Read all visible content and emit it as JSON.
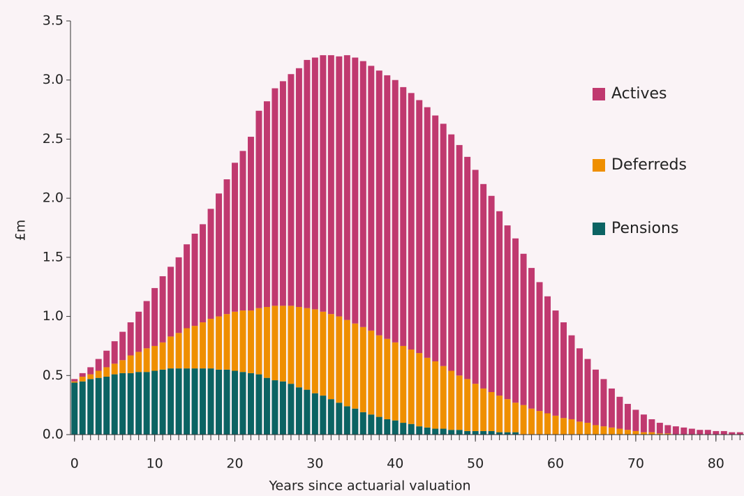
{
  "chart_data": {
    "type": "stacked-bar",
    "x": [
      0,
      1,
      2,
      3,
      4,
      5,
      6,
      7,
      8,
      9,
      10,
      11,
      12,
      13,
      14,
      15,
      16,
      17,
      18,
      19,
      20,
      21,
      22,
      23,
      24,
      25,
      26,
      27,
      28,
      29,
      30,
      31,
      32,
      33,
      34,
      35,
      36,
      37,
      38,
      39,
      40,
      41,
      42,
      43,
      44,
      45,
      46,
      47,
      48,
      49,
      50,
      51,
      52,
      53,
      54,
      55,
      56,
      57,
      58,
      59,
      60,
      61,
      62,
      63,
      64,
      65,
      66,
      67,
      68,
      69,
      70,
      71,
      72,
      73,
      74,
      75,
      76,
      77,
      78,
      79,
      80,
      81,
      82,
      83
    ],
    "series": [
      {
        "name": "Pensions",
        "color": "#0b6363",
        "values": [
          0.44,
          0.45,
          0.47,
          0.48,
          0.49,
          0.51,
          0.52,
          0.52,
          0.53,
          0.53,
          0.54,
          0.55,
          0.56,
          0.56,
          0.56,
          0.56,
          0.56,
          0.56,
          0.55,
          0.55,
          0.54,
          0.53,
          0.52,
          0.51,
          0.48,
          0.46,
          0.45,
          0.43,
          0.4,
          0.38,
          0.35,
          0.33,
          0.3,
          0.27,
          0.24,
          0.22,
          0.19,
          0.17,
          0.15,
          0.13,
          0.12,
          0.1,
          0.09,
          0.07,
          0.06,
          0.05,
          0.05,
          0.04,
          0.04,
          0.03,
          0.03,
          0.03,
          0.03,
          0.02,
          0.02,
          0.02,
          0,
          0,
          0,
          0,
          0,
          0,
          0,
          0,
          0,
          0,
          0,
          0,
          0,
          0,
          0,
          0,
          0,
          0,
          0,
          0,
          0,
          0,
          0,
          0,
          0,
          0,
          0,
          0
        ]
      },
      {
        "name": "Deferreds",
        "color": "#ef8f00",
        "values": [
          0.01,
          0.04,
          0.04,
          0.06,
          0.08,
          0.09,
          0.11,
          0.15,
          0.17,
          0.2,
          0.21,
          0.23,
          0.27,
          0.3,
          0.34,
          0.36,
          0.39,
          0.42,
          0.45,
          0.47,
          0.5,
          0.52,
          0.53,
          0.56,
          0.6,
          0.63,
          0.64,
          0.66,
          0.68,
          0.69,
          0.71,
          0.71,
          0.72,
          0.73,
          0.73,
          0.72,
          0.72,
          0.71,
          0.69,
          0.68,
          0.66,
          0.65,
          0.63,
          0.62,
          0.59,
          0.57,
          0.53,
          0.5,
          0.46,
          0.44,
          0.4,
          0.36,
          0.33,
          0.31,
          0.28,
          0.25,
          0.25,
          0.22,
          0.2,
          0.18,
          0.16,
          0.14,
          0.13,
          0.11,
          0.1,
          0.08,
          0.07,
          0.06,
          0.05,
          0.04,
          0.03,
          0.02,
          0.02,
          0.01,
          0.01,
          0,
          0,
          0,
          0,
          0,
          0,
          0,
          0,
          0
        ]
      },
      {
        "name": "Actives",
        "color": "#c0396f",
        "values": [
          0.02,
          0.03,
          0.06,
          0.1,
          0.14,
          0.19,
          0.24,
          0.28,
          0.34,
          0.4,
          0.49,
          0.56,
          0.59,
          0.64,
          0.71,
          0.78,
          0.83,
          0.93,
          1.04,
          1.14,
          1.26,
          1.35,
          1.47,
          1.67,
          1.74,
          1.84,
          1.9,
          1.96,
          2.02,
          2.1,
          2.13,
          2.17,
          2.19,
          2.2,
          2.24,
          2.25,
          2.25,
          2.24,
          2.24,
          2.23,
          2.22,
          2.19,
          2.17,
          2.14,
          2.12,
          2.08,
          2.05,
          2.0,
          1.95,
          1.88,
          1.81,
          1.73,
          1.66,
          1.56,
          1.47,
          1.39,
          1.28,
          1.19,
          1.09,
          0.99,
          0.89,
          0.81,
          0.71,
          0.62,
          0.54,
          0.47,
          0.4,
          0.33,
          0.27,
          0.22,
          0.18,
          0.15,
          0.11,
          0.09,
          0.07,
          0.07,
          0.06,
          0.05,
          0.04,
          0.04,
          0.03,
          0.03,
          0.02,
          0.02
        ]
      }
    ],
    "xlabel": "Years since actuarial valuation",
    "ylabel": "£m",
    "xlim": [
      -0.5,
      83.5
    ],
    "xticks": [
      0,
      10,
      20,
      30,
      40,
      50,
      60,
      70,
      80
    ],
    "ylim": [
      0,
      3.5
    ],
    "yticks": [
      {
        "value": 0,
        "label": "0.0"
      },
      0.5,
      {
        "value": 1,
        "label": "1.0"
      },
      1.5,
      {
        "value": 2,
        "label": "2.0"
      },
      2.5,
      {
        "value": 3,
        "label": "3.0"
      },
      3.5
    ],
    "legend": "right"
  }
}
